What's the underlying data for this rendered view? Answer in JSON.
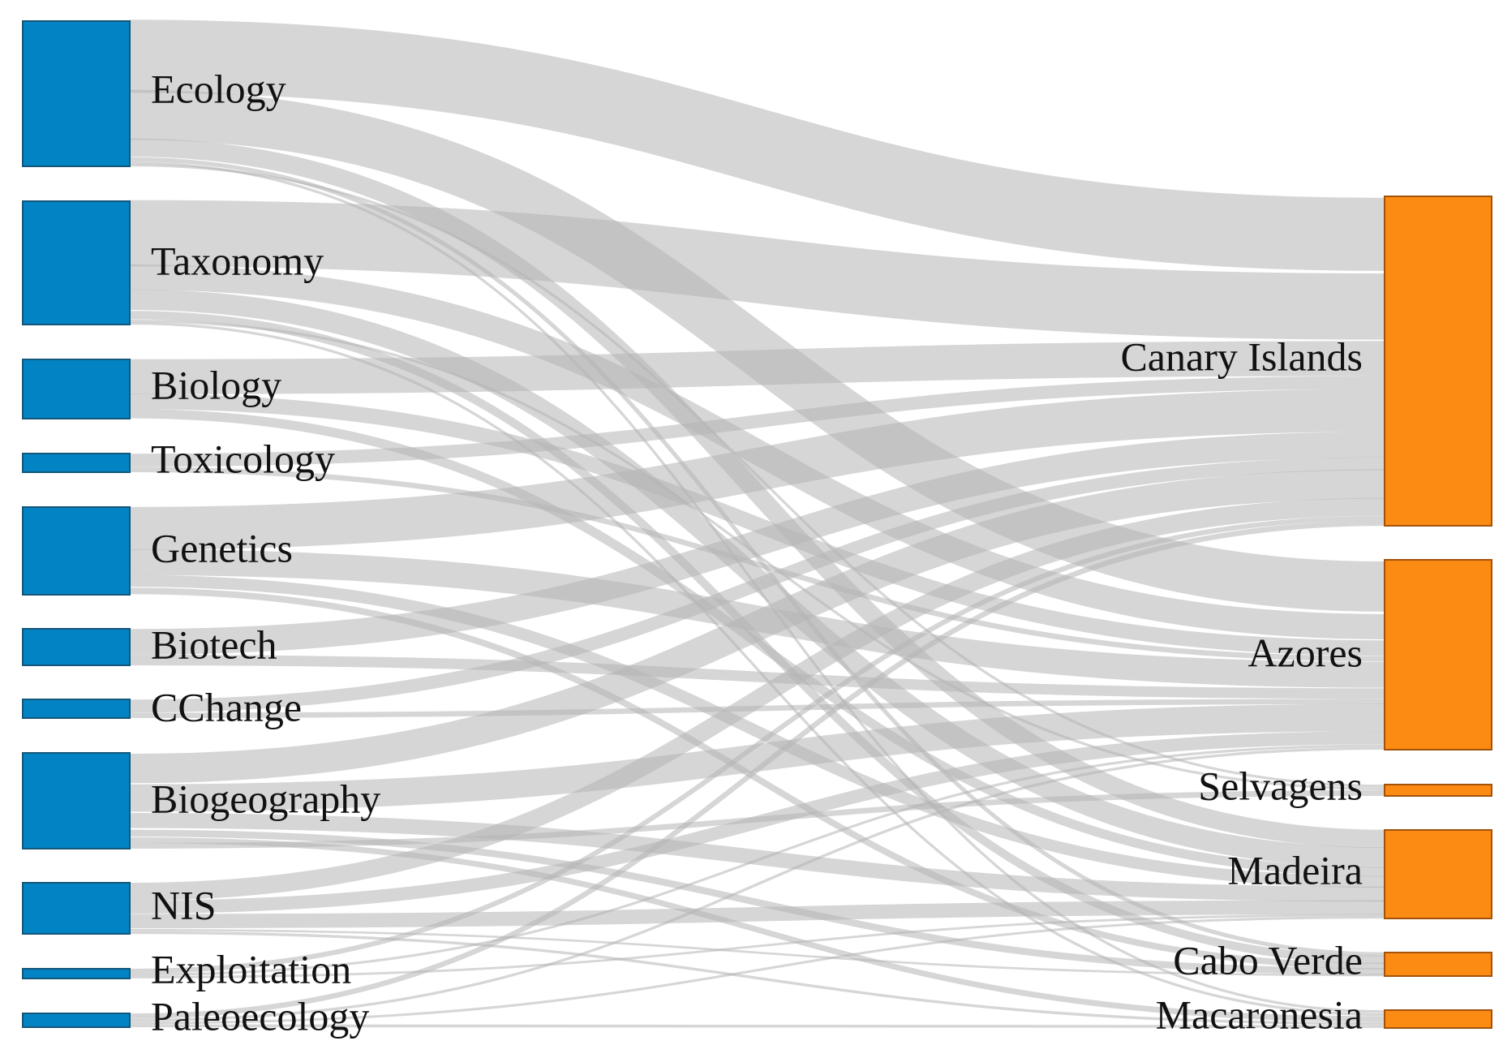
{
  "diagram": {
    "type": "sankey",
    "colors": {
      "source_fill": "#0284C4",
      "source_stroke": "#14567A",
      "target_fill": "#FB8B12",
      "target_stroke": "#A3520C",
      "link": "#B4B4B4"
    },
    "sources": [
      {
        "id": "ecology",
        "label": "Ecology"
      },
      {
        "id": "taxonomy",
        "label": "Taxonomy"
      },
      {
        "id": "biology",
        "label": "Biology"
      },
      {
        "id": "toxicology",
        "label": "Toxicology"
      },
      {
        "id": "genetics",
        "label": "Genetics"
      },
      {
        "id": "biotech",
        "label": "Biotech"
      },
      {
        "id": "cchange",
        "label": "CChange"
      },
      {
        "id": "biogeography",
        "label": "Biogeography"
      },
      {
        "id": "nis",
        "label": "NIS"
      },
      {
        "id": "exploitation",
        "label": "Exploitation"
      },
      {
        "id": "paleoecology",
        "label": "Paleoecology"
      }
    ],
    "targets": [
      {
        "id": "canary",
        "label": "Canary Islands"
      },
      {
        "id": "azores",
        "label": "Azores"
      },
      {
        "id": "selvagens",
        "label": "Selvagens"
      },
      {
        "id": "madeira",
        "label": "Madeira"
      },
      {
        "id": "caboverde",
        "label": "Cabo Verde"
      },
      {
        "id": "macaronesia",
        "label": "Macaronesia"
      }
    ],
    "links": [
      {
        "source": "ecology",
        "target": "canary",
        "value": 30
      },
      {
        "source": "ecology",
        "target": "azores",
        "value": 20
      },
      {
        "source": "ecology",
        "target": "madeira",
        "value": 8
      },
      {
        "source": "ecology",
        "target": "caboverde",
        "value": 2
      },
      {
        "source": "ecology",
        "target": "macaronesia",
        "value": 1
      },
      {
        "source": "ecology",
        "target": "selvagens",
        "value": 1
      },
      {
        "source": "taxonomy",
        "target": "canary",
        "value": 27
      },
      {
        "source": "taxonomy",
        "target": "azores",
        "value": 10
      },
      {
        "source": "taxonomy",
        "target": "madeira",
        "value": 9
      },
      {
        "source": "taxonomy",
        "target": "caboverde",
        "value": 4
      },
      {
        "source": "taxonomy",
        "target": "selvagens",
        "value": 1
      },
      {
        "source": "taxonomy",
        "target": "macaronesia",
        "value": 1
      },
      {
        "source": "biology",
        "target": "canary",
        "value": 14
      },
      {
        "source": "biology",
        "target": "azores",
        "value": 6
      },
      {
        "source": "biology",
        "target": "madeira",
        "value": 4
      },
      {
        "source": "toxicology",
        "target": "canary",
        "value": 5
      },
      {
        "source": "toxicology",
        "target": "azores",
        "value": 2
      },
      {
        "source": "genetics",
        "target": "canary",
        "value": 17
      },
      {
        "source": "genetics",
        "target": "azores",
        "value": 10
      },
      {
        "source": "genetics",
        "target": "madeira",
        "value": 5
      },
      {
        "source": "genetics",
        "target": "caboverde",
        "value": 3
      },
      {
        "source": "biotech",
        "target": "canary",
        "value": 10
      },
      {
        "source": "biotech",
        "target": "azores",
        "value": 4
      },
      {
        "source": "cchange",
        "target": "canary",
        "value": 5
      },
      {
        "source": "cchange",
        "target": "azores",
        "value": 2
      },
      {
        "source": "biogeography",
        "target": "canary",
        "value": 11
      },
      {
        "source": "biogeography",
        "target": "azores",
        "value": 10
      },
      {
        "source": "biogeography",
        "target": "madeira",
        "value": 6
      },
      {
        "source": "biogeography",
        "target": "caboverde",
        "value": 3
      },
      {
        "source": "biogeography",
        "target": "macaronesia",
        "value": 2
      },
      {
        "source": "biogeography",
        "target": "selvagens",
        "value": 2
      },
      {
        "source": "nis",
        "target": "canary",
        "value": 7
      },
      {
        "source": "nis",
        "target": "azores",
        "value": 5
      },
      {
        "source": "nis",
        "target": "madeira",
        "value": 6
      },
      {
        "source": "nis",
        "target": "caboverde",
        "value": 1
      },
      {
        "source": "nis",
        "target": "macaronesia",
        "value": 1
      },
      {
        "source": "exploitation",
        "target": "canary",
        "value": 2
      },
      {
        "source": "exploitation",
        "target": "azores",
        "value": 1
      },
      {
        "source": "exploitation",
        "target": "madeira",
        "value": 1
      },
      {
        "source": "paleoecology",
        "target": "canary",
        "value": 2
      },
      {
        "source": "paleoecology",
        "target": "azores",
        "value": 1
      },
      {
        "source": "paleoecology",
        "target": "madeira",
        "value": 1
      },
      {
        "source": "paleoecology",
        "target": "macaronesia",
        "value": 1
      }
    ]
  }
}
